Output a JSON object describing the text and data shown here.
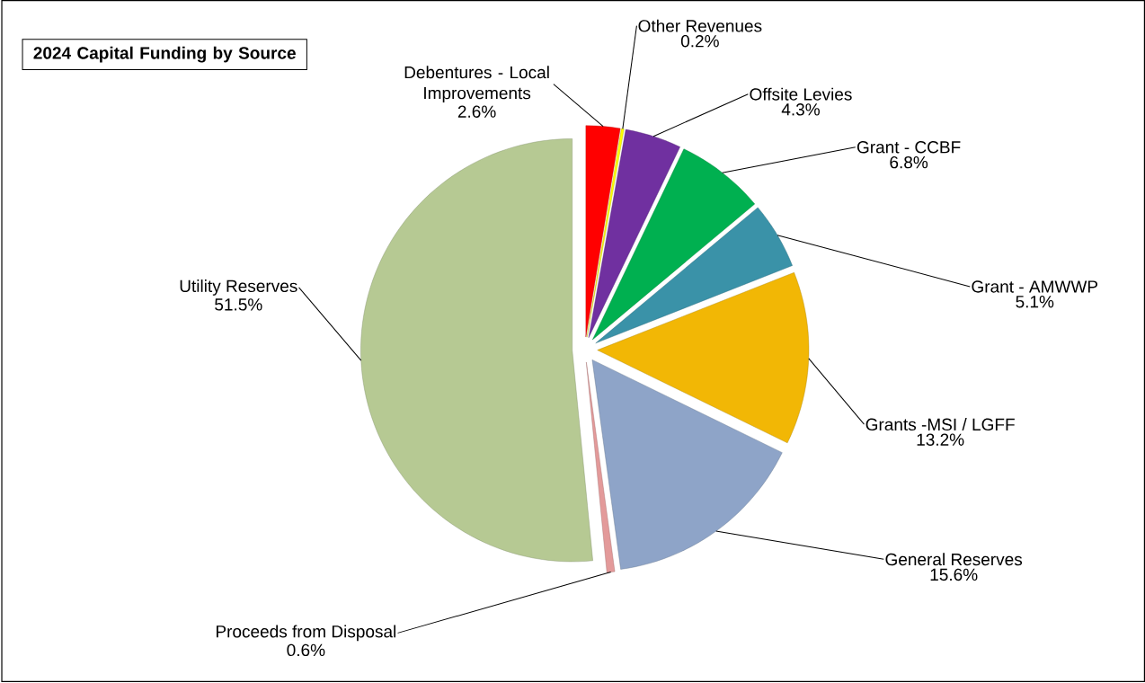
{
  "chart_data": {
    "type": "pie",
    "title": "2024 Capital Funding by Source",
    "categories": [
      "Debentures - Local Improvements",
      "Other Revenues",
      "Offsite Levies",
      "Grant - CCBF",
      "Grant - AMWWP",
      "Grants -MSI / LGFF",
      "General Reserves",
      "Proceeds from Disposal",
      "Utility Reserves"
    ],
    "values": [
      2.6,
      0.2,
      4.3,
      6.8,
      5.1,
      13.2,
      15.6,
      0.6,
      51.5
    ],
    "value_labels": [
      "2.6%",
      "0.2%",
      "4.3%",
      "6.8%",
      "5.1%",
      "13.2%",
      "15.6%",
      "0.6%",
      "51.5%"
    ],
    "colors": [
      "#ff0000",
      "#ffff00",
      "#7030a0",
      "#00b050",
      "#3a92a8",
      "#f2b705",
      "#8ea4c8",
      "#e39a9a",
      "#b6c993"
    ]
  }
}
